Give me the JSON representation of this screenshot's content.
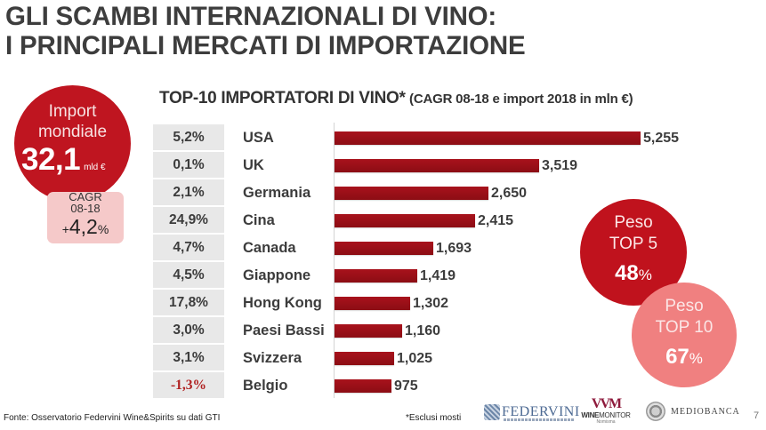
{
  "title": {
    "line1": "GLI SCAMBI INTERNAZIONALI DI VINO:",
    "line2": "I PRINCIPALI MERCATI DI IMPORTAZIONE"
  },
  "subtitle": {
    "main": "TOP-10 IMPORTATORI DI VINO*",
    "note": "(CAGR 08-18 e import 2018 in mln €)"
  },
  "world_import": {
    "label_line1": "Import",
    "label_line2": "mondiale",
    "value": "32,1",
    "unit": "mld €",
    "cagr_label_line1": "CAGR",
    "cagr_label_line2": "08-18",
    "cagr_sign": "+",
    "cagr_value": "4,2",
    "cagr_pct": "%"
  },
  "weights": {
    "top5": {
      "line1": "Peso",
      "line2": "TOP 5",
      "value": "48",
      "pct": "%"
    },
    "top10": {
      "line1": "Peso",
      "line2": "TOP 10",
      "value": "67",
      "pct": "%"
    }
  },
  "colors": {
    "bar": "#9c1018",
    "world_circle": "#bf1520",
    "top5_circle": "#c0121d",
    "top10_circle": "#f08080",
    "cagr_box": "#f5c9c9",
    "cagr_cell": "#e8e8e8",
    "negative": "#b02020"
  },
  "rows": [
    {
      "country": "USA",
      "cagr": "5,2%",
      "value_label": "5,255",
      "value": 5255,
      "negative": false
    },
    {
      "country": "UK",
      "cagr": "0,1%",
      "value_label": "3,519",
      "value": 3519,
      "negative": false
    },
    {
      "country": "Germania",
      "cagr": "2,1%",
      "value_label": "2,650",
      "value": 2650,
      "negative": false
    },
    {
      "country": "Cina",
      "cagr": "24,9%",
      "value_label": "2,415",
      "value": 2415,
      "negative": false
    },
    {
      "country": "Canada",
      "cagr": "4,7%",
      "value_label": "1,693",
      "value": 1693,
      "negative": false
    },
    {
      "country": "Giappone",
      "cagr": "4,5%",
      "value_label": "1,419",
      "value": 1419,
      "negative": false
    },
    {
      "country": "Hong Kong",
      "cagr": "17,8%",
      "value_label": "1,302",
      "value": 1302,
      "negative": false
    },
    {
      "country": "Paesi Bassi",
      "cagr": "3,0%",
      "value_label": "1,160",
      "value": 1160,
      "negative": false
    },
    {
      "country": "Svizzera",
      "cagr": "3,1%",
      "value_label": "1,025",
      "value": 1025,
      "negative": false
    },
    {
      "country": "Belgio",
      "cagr": "-1,3%",
      "value_label": "975",
      "value": 975,
      "negative": true
    }
  ],
  "chart_data": {
    "type": "bar",
    "orientation": "horizontal",
    "title": "TOP-10 IMPORTATORI DI VINO* (CAGR 08-18 e import 2018 in mln €)",
    "xlabel": "",
    "ylabel": "",
    "categories": [
      "USA",
      "UK",
      "Germania",
      "Cina",
      "Canada",
      "Giappone",
      "Hong Kong",
      "Paesi Bassi",
      "Svizzera",
      "Belgio"
    ],
    "series": [
      {
        "name": "Import 2018 (mln €)",
        "values": [
          5255,
          3519,
          2650,
          2415,
          1693,
          1419,
          1302,
          1160,
          1025,
          975
        ]
      },
      {
        "name": "CAGR 08-18 (%)",
        "values": [
          5.2,
          0.1,
          2.1,
          24.9,
          4.7,
          4.5,
          17.8,
          3.0,
          3.1,
          -1.3
        ]
      }
    ],
    "data_labels": [
      "5,255",
      "3,519",
      "2,650",
      "2,415",
      "1,693",
      "1,419",
      "1,302",
      "1,160",
      "1,025",
      "975"
    ],
    "grid": false,
    "legend": null,
    "annotations": [
      "Import mondiale 32,1 mld €, CAGR 08-18 +4,2%",
      "Peso TOP 5 48%",
      "Peso TOP 10 67%",
      "*Esclusi mosti"
    ]
  },
  "footer": {
    "source": "Fonte: Osservatorio Federvini Wine&Spirits su dati GTI",
    "note": "*Esclusi mosti",
    "page_number": "7",
    "logos": {
      "federvini": "FEDERVINI",
      "winemonitor_mark": "VVM",
      "winemonitor_bold": "WINE",
      "winemonitor_rest": "MONITOR",
      "winemonitor_sub": "Nomisma",
      "mediobanca": "MEDIOBANCA"
    }
  }
}
